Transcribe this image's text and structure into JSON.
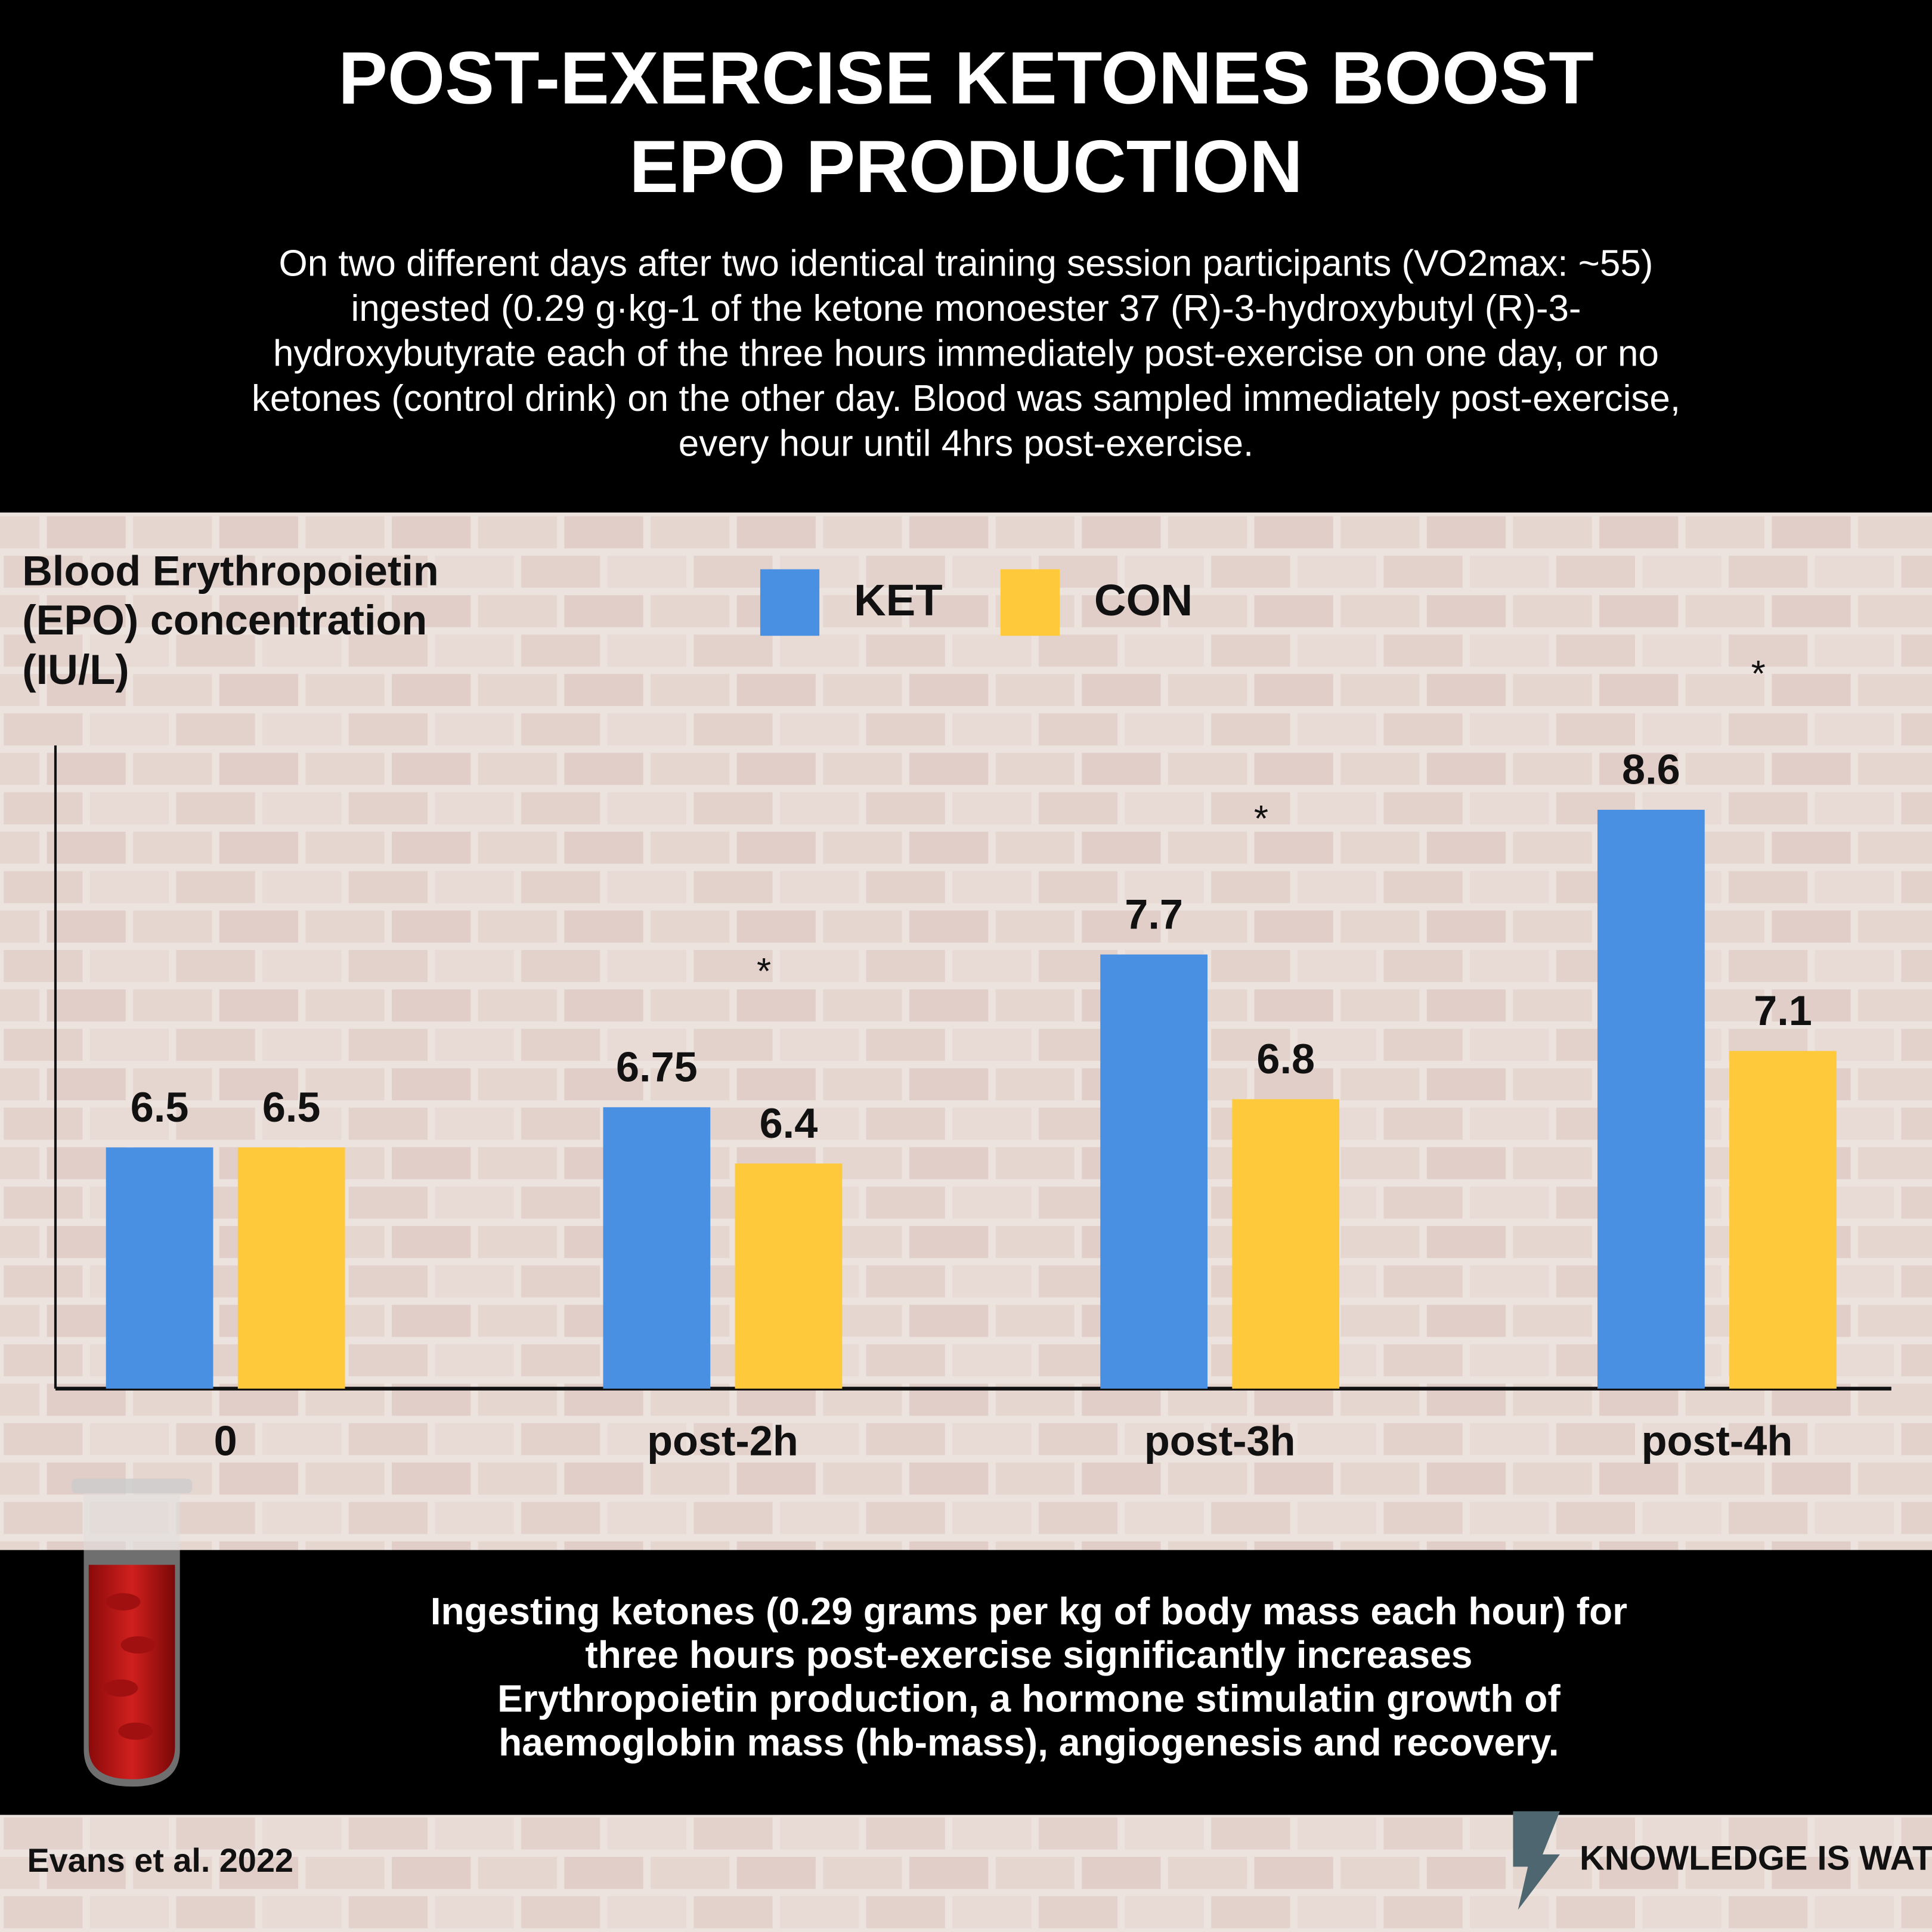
{
  "chart_data": {
    "type": "bar",
    "title": [
      "POST-EXERCISE KETONES BOOST",
      "EPO PRODUCTION"
    ],
    "subtitle": [
      "On two different days after two identical training session participants (VO2max: ~55)",
      "ingested (0.29 g·kg-1 of the ketone monoester 37 (R)-3-hydroxybutyl (R)-3-",
      "hydroxybutyrate each of the three hours immediately post-exercise on one day, or no",
      "ketones (control drink) on the other day. Blood was sampled immediately post-exercise,",
      "every hour until 4hrs post-exercise."
    ],
    "y_label": [
      "Blood Erythropoietin",
      "(EPO) concentration",
      "(IU/L)"
    ],
    "categories": [
      "0",
      "post-2h",
      "post-3h",
      "post-4h"
    ],
    "series": [
      {
        "name": "KET",
        "color": "#4a90e2",
        "values": [
          6.5,
          6.75,
          7.7,
          8.6
        ]
      },
      {
        "name": "CON",
        "color": "#ffc93c",
        "values": [
          6.5,
          6.4,
          6.8,
          7.1
        ]
      }
    ],
    "significance": [
      null,
      "*",
      "*",
      "*"
    ],
    "ylim": [
      5,
      9
    ],
    "legend": "top"
  },
  "conclusion": [
    "Ingesting ketones (0.29 grams per kg of body mass each hour) for",
    "three hours post-exercise significantly increases",
    "Erythropoietin production, a hormone stimulatin growth of",
    "haemoglobin mass (hb-mass), angiogenesis and recovery."
  ],
  "citation": "Evans et al. 2022",
  "brand": "KNOWLEDGE IS WATT"
}
